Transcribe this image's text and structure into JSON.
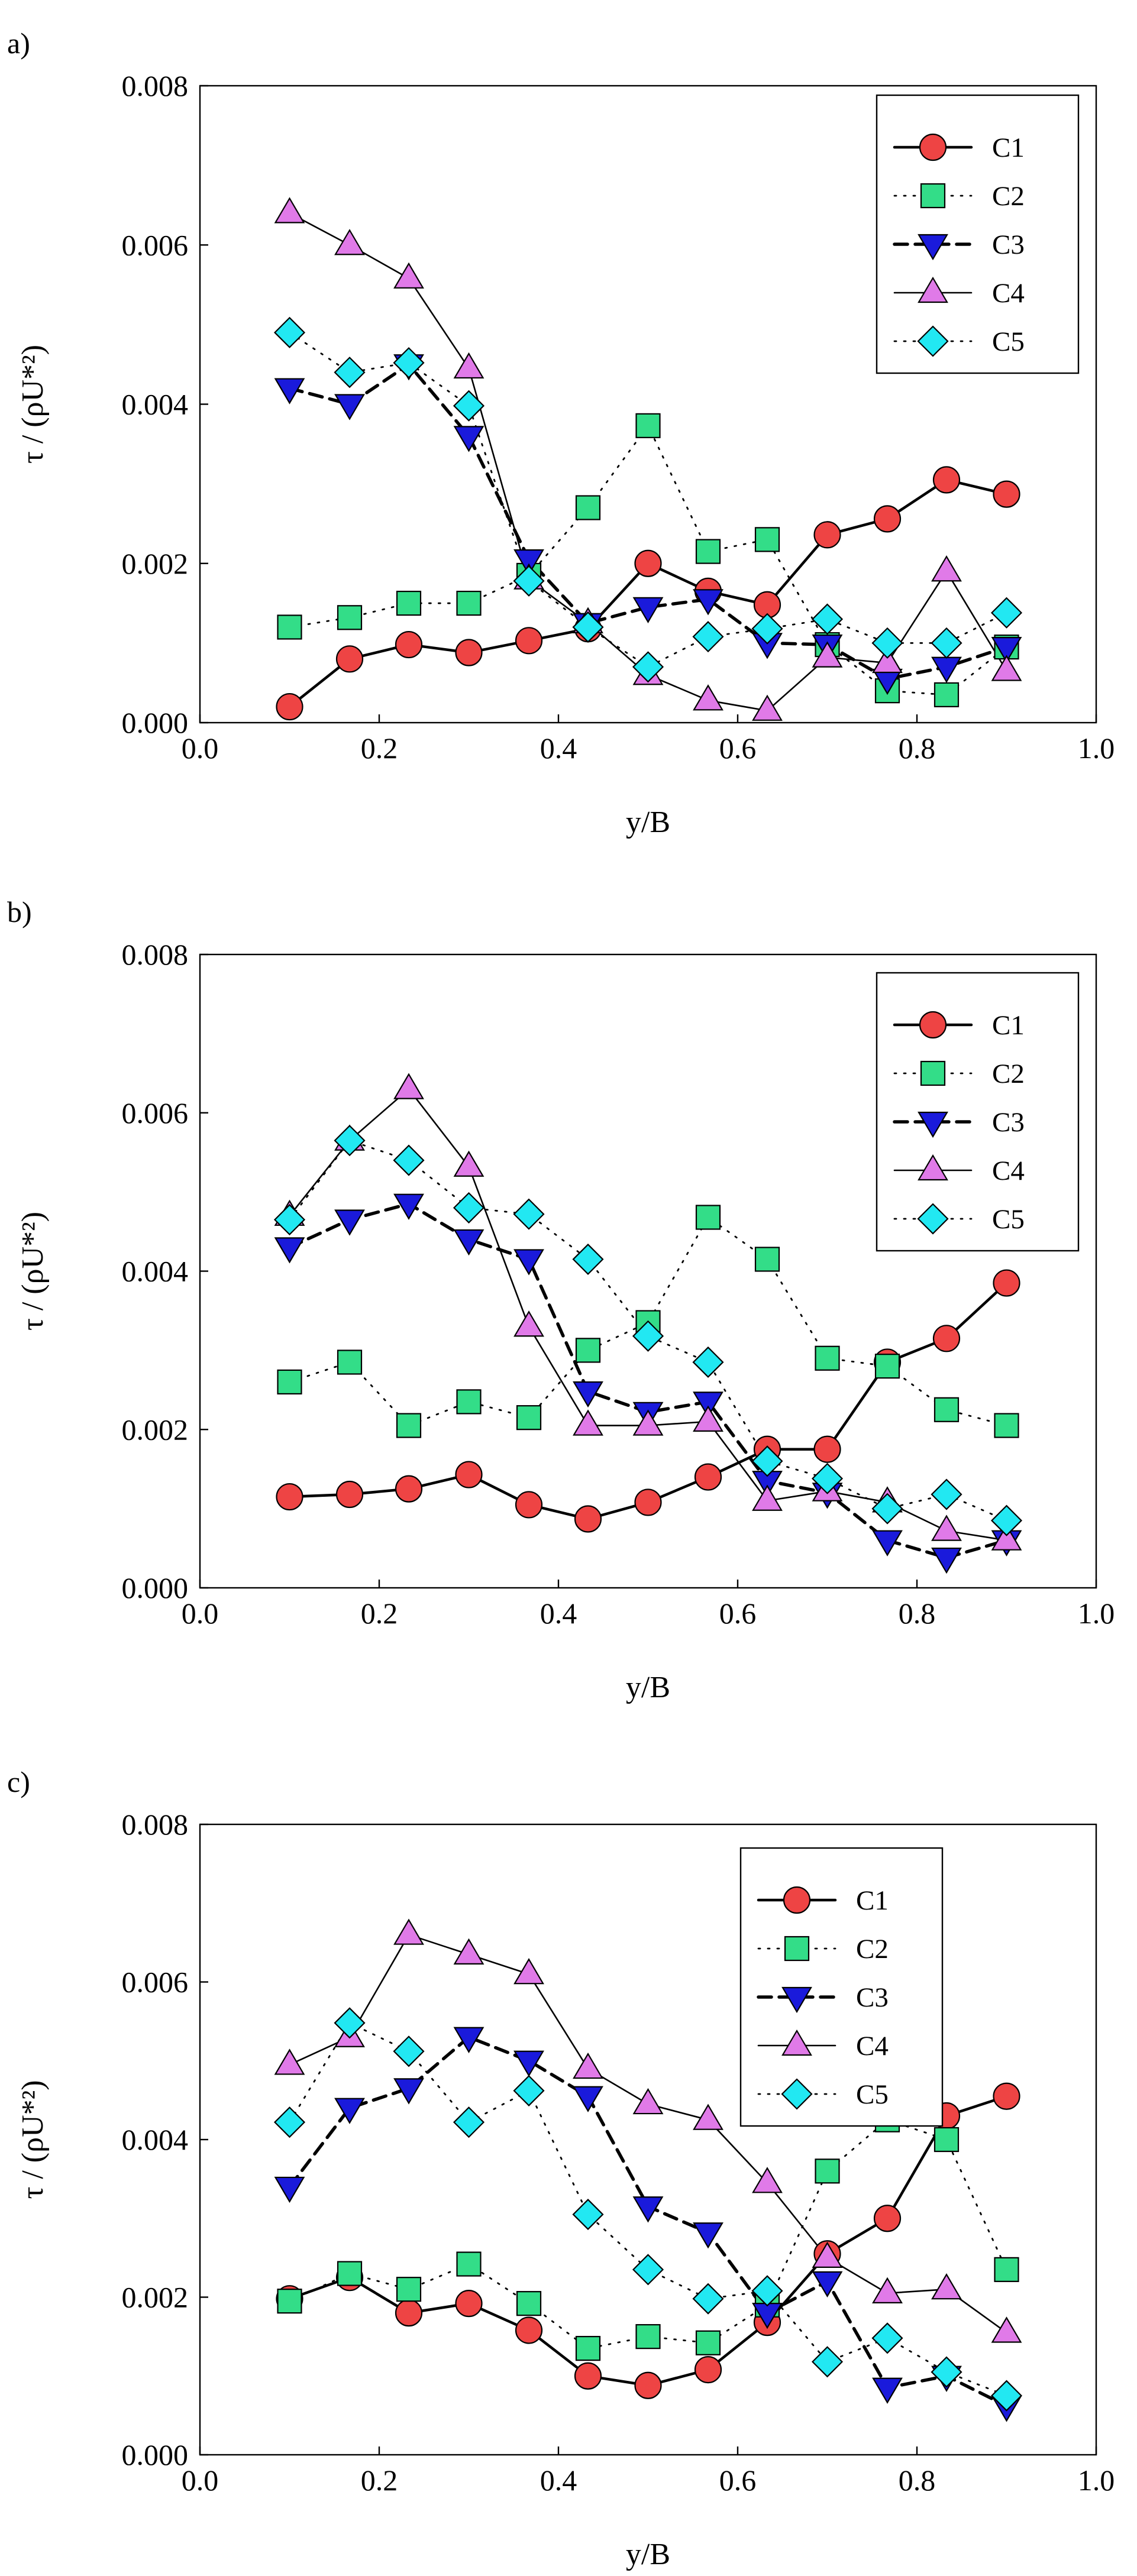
{
  "colors": {
    "C1": "#ee4444",
    "C2": "#33dd88",
    "C3": "#1a1adb",
    "C4": "#e07ae8",
    "C5": "#22e8f2"
  },
  "chart_data": [
    {
      "type": "line",
      "panel_label": "a)",
      "xlabel": "y/B",
      "ylabel": "τ / (ρU*²)",
      "xlim": [
        0.0,
        1.0
      ],
      "ylim": [
        0.0,
        0.008
      ],
      "xticks": [
        "0.0",
        "0.2",
        "0.4",
        "0.6",
        "0.8",
        "1.0"
      ],
      "yticks": [
        "0.000",
        "0.002",
        "0.004",
        "0.006",
        "0.008"
      ],
      "legend_position": "top-right",
      "x": [
        0.1,
        0.167,
        0.233,
        0.3,
        0.367,
        0.433,
        0.5,
        0.567,
        0.633,
        0.7,
        0.767,
        0.833,
        0.9
      ],
      "series": [
        {
          "name": "C1",
          "values": [
            0.0002,
            0.0008,
            0.00098,
            0.00088,
            0.00103,
            0.00118,
            0.002,
            0.00165,
            0.00148,
            0.00236,
            0.00256,
            0.00305,
            0.00287
          ]
        },
        {
          "name": "C2",
          "values": [
            0.0012,
            0.00132,
            0.0015,
            0.0015,
            0.00185,
            0.0027,
            0.00373,
            0.00215,
            0.0023,
            0.00098,
            0.0004,
            0.00035,
            0.00095
          ]
        },
        {
          "name": "C3",
          "values": [
            0.0042,
            0.004,
            0.0045,
            0.0036,
            0.00205,
            0.00125,
            0.00145,
            0.00155,
            0.001,
            0.00098,
            0.00055,
            0.0007,
            0.00095
          ]
        },
        {
          "name": "C4",
          "values": [
            0.0064,
            0.006,
            0.00558,
            0.00445,
            0.0018,
            0.00125,
            0.0006,
            0.00028,
            0.00015,
            0.00082,
            0.00075,
            0.0019,
            0.00065
          ]
        },
        {
          "name": "C5",
          "values": [
            0.0049,
            0.0044,
            0.00452,
            0.00398,
            0.00178,
            0.0012,
            0.0007,
            0.00108,
            0.00118,
            0.0013,
            0.001,
            0.001,
            0.00138
          ]
        }
      ]
    },
    {
      "type": "line",
      "panel_label": "b)",
      "xlabel": "y/B",
      "ylabel": "τ / (ρU*²)",
      "xlim": [
        0.0,
        1.0
      ],
      "ylim": [
        0.0,
        0.008
      ],
      "xticks": [
        "0.0",
        "0.2",
        "0.4",
        "0.6",
        "0.8",
        "1.0"
      ],
      "yticks": [
        "0.000",
        "0.002",
        "0.004",
        "0.006",
        "0.008"
      ],
      "legend_position": "top-right",
      "x": [
        0.1,
        0.167,
        0.233,
        0.3,
        0.367,
        0.433,
        0.5,
        0.567,
        0.633,
        0.7,
        0.767,
        0.833,
        0.9
      ],
      "series": [
        {
          "name": "C1",
          "values": [
            0.00115,
            0.00118,
            0.00125,
            0.00143,
            0.00105,
            0.00087,
            0.00108,
            0.0014,
            0.00175,
            0.00175,
            0.00285,
            0.00315,
            0.00385
          ]
        },
        {
          "name": "C2",
          "values": [
            0.0026,
            0.00285,
            0.00205,
            0.00235,
            0.00215,
            0.003,
            0.00335,
            0.00468,
            0.00415,
            0.0029,
            0.0028,
            0.00225,
            0.00205
          ]
        },
        {
          "name": "C3",
          "values": [
            0.0043,
            0.00465,
            0.00485,
            0.0044,
            0.00415,
            0.00248,
            0.00222,
            0.00235,
            0.00135,
            0.0012,
            0.0006,
            0.00038,
            0.0006
          ]
        },
        {
          "name": "C4",
          "values": [
            0.0047,
            0.00565,
            0.0063,
            0.00532,
            0.0033,
            0.00205,
            0.00205,
            0.0021,
            0.0011,
            0.00122,
            0.00108,
            0.00072,
            0.0006
          ]
        },
        {
          "name": "C5",
          "values": [
            0.00465,
            0.00565,
            0.0054,
            0.0048,
            0.00472,
            0.00415,
            0.00318,
            0.00285,
            0.0016,
            0.00138,
            0.001,
            0.00118,
            0.00085
          ]
        }
      ]
    },
    {
      "type": "line",
      "panel_label": "c)",
      "xlabel": "y/B",
      "ylabel": "τ / (ρU*²)",
      "xlim": [
        0.0,
        1.0
      ],
      "ylim": [
        0.0,
        0.008
      ],
      "xticks": [
        "0.0",
        "0.2",
        "0.4",
        "0.6",
        "0.8",
        "1.0"
      ],
      "yticks": [
        "0.000",
        "0.002",
        "0.004",
        "0.006",
        "0.008"
      ],
      "legend_position": "top-center",
      "x": [
        0.1,
        0.167,
        0.233,
        0.3,
        0.367,
        0.433,
        0.5,
        0.567,
        0.633,
        0.7,
        0.767,
        0.833,
        0.9
      ],
      "series": [
        {
          "name": "C1",
          "values": [
            0.00198,
            0.00225,
            0.0018,
            0.00192,
            0.00158,
            0.001,
            0.00088,
            0.00108,
            0.00168,
            0.00255,
            0.003,
            0.0043,
            0.00455
          ]
        },
        {
          "name": "C2",
          "values": [
            0.00195,
            0.0023,
            0.0021,
            0.00242,
            0.00192,
            0.00135,
            0.0015,
            0.00142,
            0.0019,
            0.0036,
            0.00425,
            0.004,
            0.00235
          ]
        },
        {
          "name": "C3",
          "values": [
            0.0034,
            0.0044,
            0.00465,
            0.0053,
            0.005,
            0.00455,
            0.00315,
            0.00282,
            0.0018,
            0.0022,
            0.00085,
            0.001,
            0.00062
          ]
        },
        {
          "name": "C4",
          "values": [
            0.00495,
            0.0053,
            0.0066,
            0.00635,
            0.0061,
            0.0049,
            0.00445,
            0.00425,
            0.00345,
            0.0025,
            0.00205,
            0.0021,
            0.00155
          ]
        },
        {
          "name": "C5",
          "values": [
            0.00422,
            0.00548,
            0.00512,
            0.00422,
            0.00462,
            0.00305,
            0.00235,
            0.00198,
            0.00208,
            0.00118,
            0.00148,
            0.00105,
            0.00075
          ]
        }
      ]
    }
  ]
}
